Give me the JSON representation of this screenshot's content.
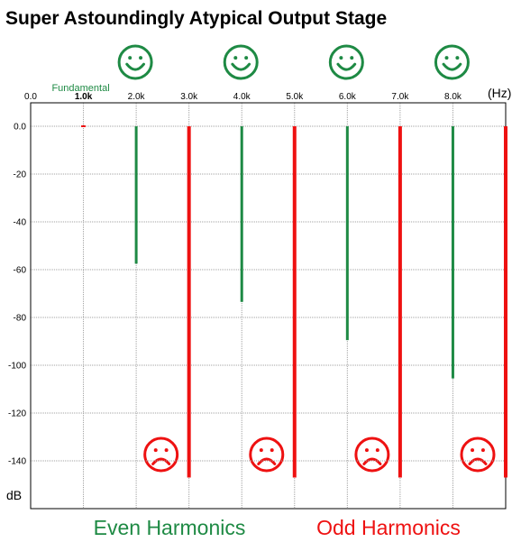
{
  "chart_data": {
    "type": "bar",
    "title": "Super Astoundingly Atypical Output Stage",
    "xunit": "(Hz)",
    "yunit": "dB",
    "xlim": [
      0,
      9000
    ],
    "ylim": [
      -160,
      9
    ],
    "grid": true,
    "x_ticks": [
      {
        "value": 0,
        "label": "0.0",
        "bold": false
      },
      {
        "value": 1000,
        "label": "1.0k",
        "bold": true
      },
      {
        "value": 2000,
        "label": "2.0k",
        "bold": false
      },
      {
        "value": 3000,
        "label": "3.0k",
        "bold": false
      },
      {
        "value": 4000,
        "label": "4.0k",
        "bold": false
      },
      {
        "value": 5000,
        "label": "5.0k",
        "bold": false
      },
      {
        "value": 6000,
        "label": "6.0k",
        "bold": false
      },
      {
        "value": 7000,
        "label": "7.0k",
        "bold": false
      },
      {
        "value": 8000,
        "label": "8.0k",
        "bold": false
      }
    ],
    "y_ticks": [
      {
        "value": 0,
        "label": "0.0"
      },
      {
        "value": -20,
        "label": "-20"
      },
      {
        "value": -40,
        "label": "-40"
      },
      {
        "value": -60,
        "label": "-60"
      },
      {
        "value": -80,
        "label": "-80"
      },
      {
        "value": -100,
        "label": "-100"
      },
      {
        "value": -120,
        "label": "-120"
      },
      {
        "value": -140,
        "label": "-140"
      }
    ],
    "harmonics": [
      {
        "freq": 1000,
        "level": 0,
        "kind": "fundamental"
      },
      {
        "freq": 2000,
        "level": -57.5,
        "kind": "even"
      },
      {
        "freq": 3000,
        "level": -147,
        "kind": "odd"
      },
      {
        "freq": 4000,
        "level": -73.5,
        "kind": "even"
      },
      {
        "freq": 5000,
        "level": -147,
        "kind": "odd"
      },
      {
        "freq": 6000,
        "level": -89.5,
        "kind": "even"
      },
      {
        "freq": 7000,
        "level": -147,
        "kind": "odd"
      },
      {
        "freq": 8000,
        "level": -105.5,
        "kind": "even"
      },
      {
        "freq": 9000,
        "level": -147,
        "kind": "odd"
      }
    ],
    "fundamental_label": "Fundamental",
    "categories": [
      {
        "label": "Even Harmonics",
        "kind": "even"
      },
      {
        "label": "Odd Harmonics",
        "kind": "odd"
      }
    ],
    "icons": {
      "even": "smiley-face-icon",
      "odd": "frowning-face-icon"
    },
    "colors": {
      "even": "#1e8a44",
      "odd": "#ee1111",
      "fundamental": "#ee1111",
      "grid": "#a0a0a0"
    }
  }
}
